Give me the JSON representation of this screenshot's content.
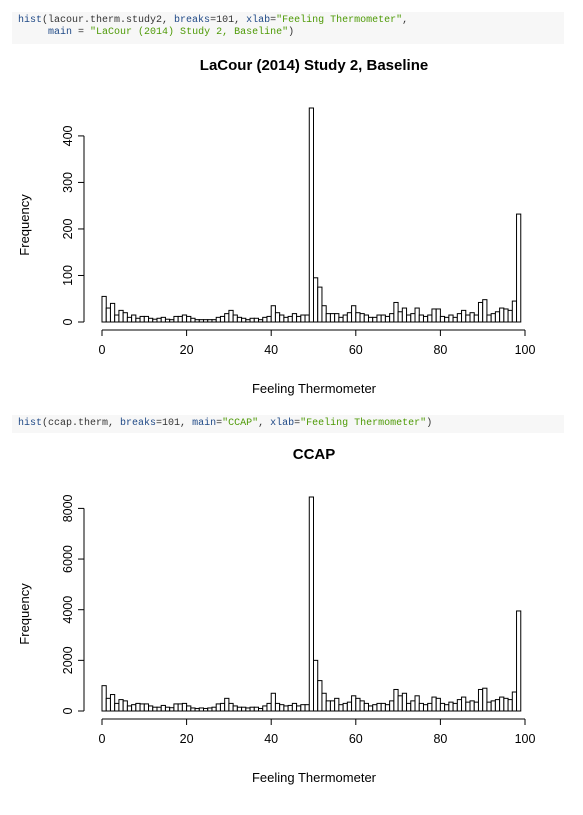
{
  "code_blocks": [
    {
      "line1": {
        "fn": "hist",
        "a": "(lacour.therm.study2, ",
        "k1": "breaks",
        "b": "=101, ",
        "k2": "xlab",
        "c": "=",
        "s1": "\"Feeling Thermometer\"",
        "d": ","
      },
      "line2": {
        "pad": "     ",
        "k3": "main",
        "e": " = ",
        "s2": "\"LaCour (2014) Study 2, Baseline\"",
        "f": ")"
      }
    },
    {
      "line1": {
        "fn": "hist",
        "a": "(ccap.therm, ",
        "k1": "breaks",
        "b": "=101, ",
        "k2": "main",
        "c": "=",
        "s1": "\"CCAP\"",
        "d": ", ",
        "k3": "xlab",
        "e": "=",
        "s2": "\"Feeling Thermometer\"",
        "f": ")"
      }
    }
  ],
  "chart_data": [
    {
      "type": "bar",
      "title": "LaCour (2014) Study 2, Baseline",
      "xlabel": "Feeling Thermometer",
      "ylabel": "Frequency",
      "xlim": [
        0,
        100
      ],
      "ylim": [
        0,
        460
      ],
      "x_ticks": [
        0,
        20,
        40,
        60,
        80,
        100
      ],
      "y_ticks": [
        0,
        100,
        200,
        300,
        400
      ],
      "bins_start": 0,
      "bin_width": 1,
      "values": [
        55,
        30,
        40,
        15,
        25,
        20,
        10,
        15,
        8,
        12,
        12,
        8,
        6,
        8,
        10,
        6,
        5,
        12,
        12,
        15,
        12,
        8,
        5,
        5,
        5,
        5,
        5,
        10,
        12,
        18,
        25,
        15,
        10,
        8,
        5,
        8,
        8,
        5,
        10,
        12,
        35,
        20,
        15,
        10,
        12,
        18,
        12,
        15,
        15,
        460,
        95,
        75,
        35,
        18,
        18,
        18,
        10,
        15,
        20,
        35,
        20,
        18,
        15,
        10,
        10,
        15,
        15,
        12,
        18,
        42,
        22,
        30,
        15,
        18,
        30,
        15,
        12,
        15,
        28,
        28,
        12,
        10,
        15,
        10,
        18,
        25,
        15,
        20,
        15,
        42,
        48,
        15,
        18,
        22,
        30,
        28,
        25,
        45,
        232
      ]
    },
    {
      "type": "bar",
      "title": "CCAP",
      "xlabel": "Feeling Thermometer",
      "ylabel": "Frequency",
      "xlim": [
        0,
        100
      ],
      "ylim": [
        0,
        8450
      ],
      "x_ticks": [
        0,
        20,
        40,
        60,
        80,
        100
      ],
      "y_ticks": [
        0,
        2000,
        4000,
        6000,
        8000
      ],
      "bins_start": 0,
      "bin_width": 1,
      "values": [
        1000,
        500,
        650,
        300,
        450,
        400,
        200,
        250,
        300,
        280,
        280,
        200,
        150,
        150,
        220,
        150,
        130,
        280,
        280,
        300,
        200,
        120,
        100,
        120,
        100,
        120,
        150,
        280,
        300,
        500,
        300,
        200,
        150,
        150,
        120,
        150,
        150,
        100,
        200,
        300,
        700,
        300,
        250,
        200,
        220,
        300,
        200,
        250,
        250,
        8450,
        2000,
        1200,
        700,
        400,
        400,
        500,
        250,
        300,
        350,
        600,
        500,
        400,
        300,
        200,
        250,
        300,
        300,
        250,
        400,
        850,
        600,
        700,
        300,
        400,
        600,
        300,
        250,
        300,
        550,
        500,
        300,
        250,
        350,
        300,
        450,
        550,
        350,
        400,
        350,
        850,
        900,
        350,
        400,
        450,
        550,
        500,
        450,
        750,
        3950
      ]
    }
  ]
}
